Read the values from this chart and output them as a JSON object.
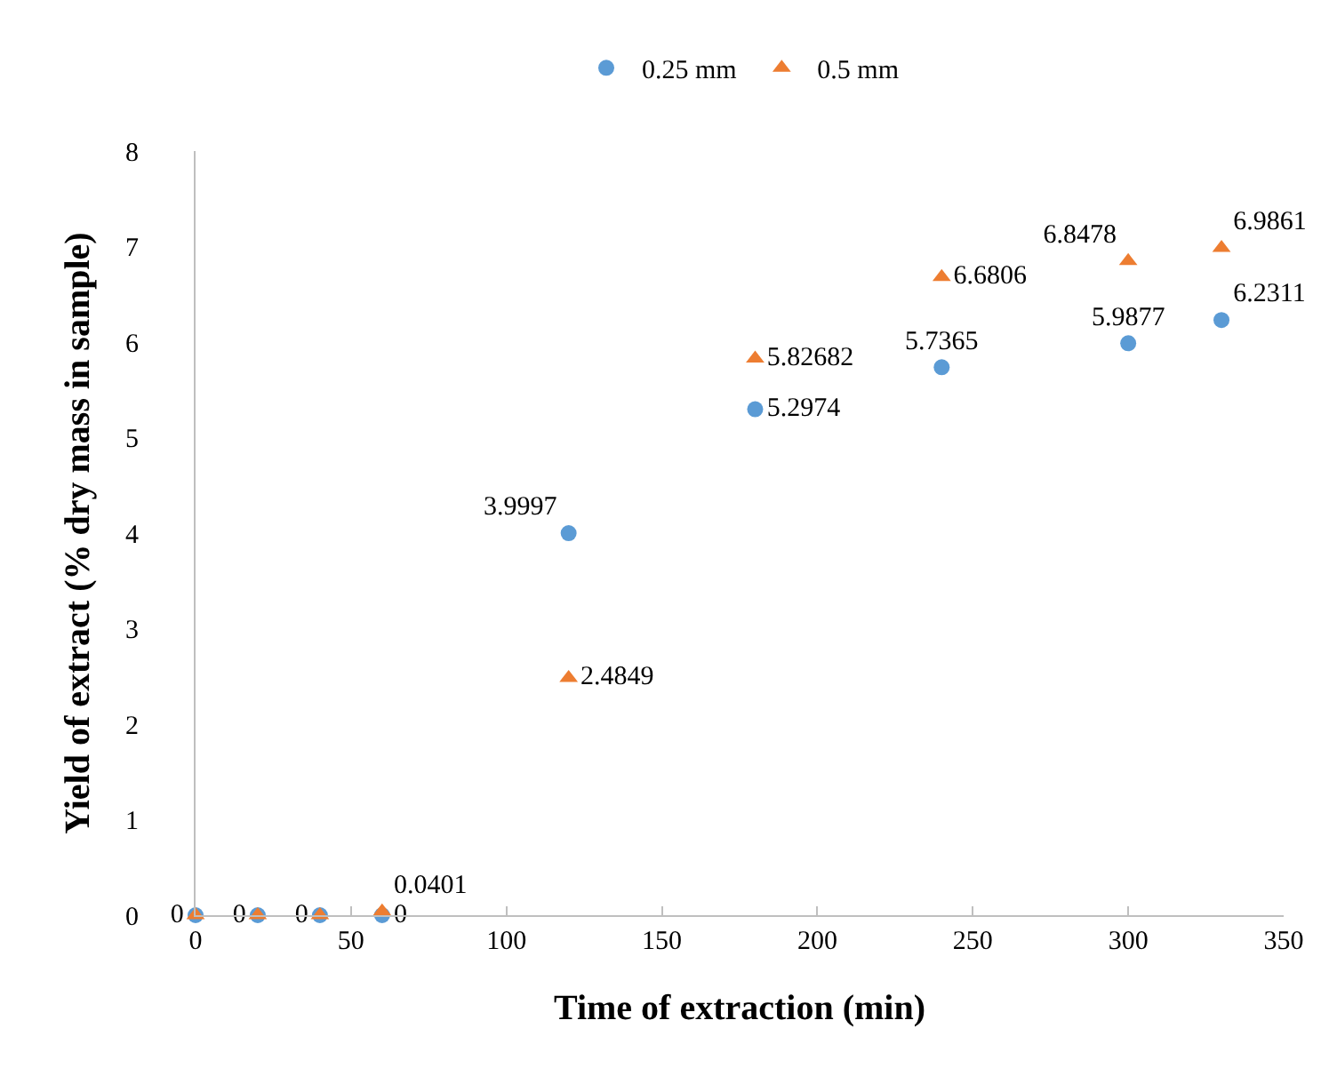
{
  "chart_data": {
    "type": "scatter",
    "xlabel": "Time of extraction (min)",
    "ylabel": "Yield of extract (% dry mass in sample)",
    "xlim": [
      0,
      350
    ],
    "xticks": [
      0,
      50,
      100,
      150,
      200,
      250,
      300,
      350
    ],
    "ylim": [
      0,
      8
    ],
    "yticks": [
      0,
      1,
      2,
      3,
      4,
      5,
      6,
      7,
      8
    ],
    "grid": false,
    "legend": "top",
    "series": [
      {
        "name": "0.25 mm",
        "color": "#5b9bd5",
        "marker": "circle",
        "x": [
          0,
          20,
          40,
          60,
          120,
          180,
          240,
          300,
          330
        ],
        "values": [
          0,
          0,
          0,
          0,
          3.9997,
          5.2974,
          5.7365,
          5.9877,
          6.2311
        ],
        "value_labels": [
          "0",
          "0",
          "0",
          "0",
          "3.9997",
          "5.2974",
          "5.7365",
          "5.9877",
          "6.2311"
        ]
      },
      {
        "name": "0.5 mm",
        "color": "#ed7d31",
        "marker": "triangle",
        "x": [
          0,
          20,
          40,
          60,
          120,
          180,
          240,
          300,
          330
        ],
        "values": [
          0,
          0,
          0,
          0.0401,
          2.4849,
          5.82682,
          6.6806,
          6.8478,
          6.9861
        ],
        "value_labels": [
          null,
          null,
          null,
          "0.0401",
          "2.4849",
          "5.82682",
          "6.6806",
          "6.8478",
          "6.9861"
        ]
      }
    ]
  }
}
